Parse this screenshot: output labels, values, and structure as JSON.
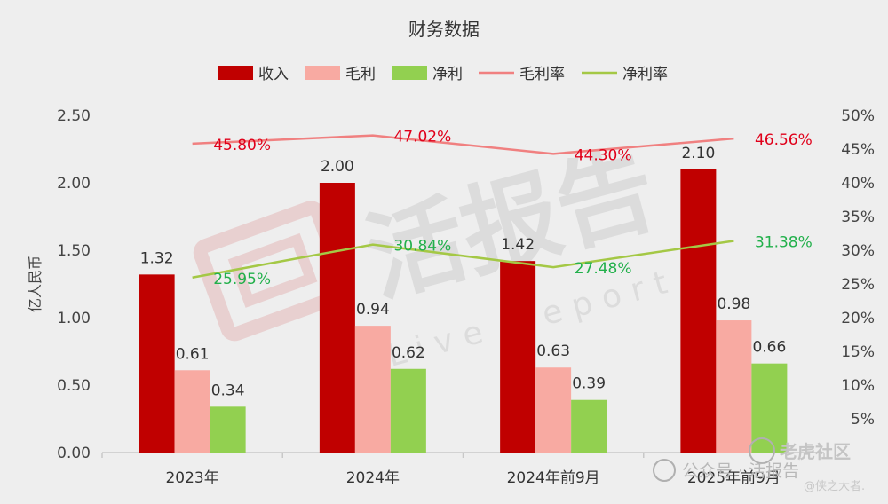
{
  "chart_data": {
    "type": "bar",
    "title": "财务数据",
    "ylabel": "亿人民币",
    "categories": [
      "2023年",
      "2024年",
      "2024年前9月",
      "2025年前9月"
    ],
    "ylim": [
      0,
      2.5
    ],
    "yticks": [
      "0.00",
      "0.50",
      "1.00",
      "1.50",
      "2.00",
      "2.50"
    ],
    "y2lim": [
      0,
      50
    ],
    "y2ticks": [
      "5%",
      "10%",
      "15%",
      "20%",
      "25%",
      "30%",
      "35%",
      "40%",
      "45%",
      "50%"
    ],
    "legend_position": "top",
    "series": [
      {
        "name": "收入",
        "kind": "bar",
        "axis": "left",
        "color": "#c00000",
        "values": [
          1.32,
          2.0,
          1.42,
          2.1
        ],
        "labels": [
          "1.32",
          "2.00",
          "1.42",
          "2.10"
        ]
      },
      {
        "name": "毛利",
        "kind": "bar",
        "axis": "left",
        "color": "#f8aaa2",
        "values": [
          0.61,
          0.94,
          0.63,
          0.98
        ],
        "labels": [
          "0.61",
          "0.94",
          "0.63",
          "0.98"
        ]
      },
      {
        "name": "净利",
        "kind": "bar",
        "axis": "left",
        "color": "#92d050",
        "values": [
          0.34,
          0.62,
          0.39,
          0.66
        ],
        "labels": [
          "0.34",
          "0.62",
          "0.39",
          "0.66"
        ]
      },
      {
        "name": "毛利率",
        "kind": "line",
        "axis": "right",
        "color": "#f08080",
        "label_color": "#e0001a",
        "values": [
          45.8,
          47.02,
          44.3,
          46.56
        ],
        "labels": [
          "45.80%",
          "47.02%",
          "44.30%",
          "46.56%"
        ]
      },
      {
        "name": "净利率",
        "kind": "line",
        "axis": "right",
        "color": "#a4c845",
        "label_color": "#22b04b",
        "values": [
          25.95,
          30.84,
          27.48,
          31.38
        ],
        "labels": [
          "25.95%",
          "30.84%",
          "27.48%",
          "31.38%"
        ]
      }
    ]
  },
  "watermark": {
    "main": "活报告",
    "sub": "Live Report",
    "corner_brand": "老虎社区",
    "corner_mid": "公众号 · 活报告",
    "corner_handle": "@侠之大者."
  }
}
